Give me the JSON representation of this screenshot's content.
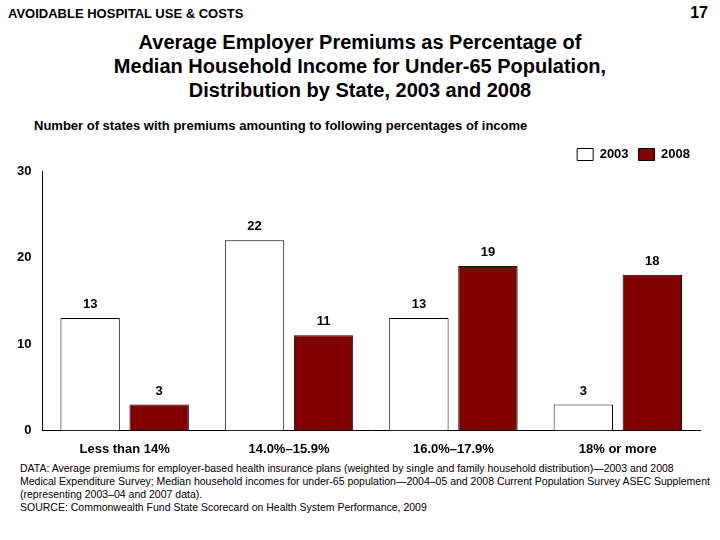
{
  "header": "AVOIDABLE HOSPITAL USE & COSTS",
  "page_number": "17",
  "notes": [
    "DATA: Average premiums for employer-based health insurance plans (weighted by single and family household distribution)—2003 and 2008 Medical Expenditure Survey; Median household incomes for under-65 population—2004–05 and 2008 Current Population Survey ASEC Supplement (representing 2003–04 and 2007 data).",
    "SOURCE: Commonwealth Fund State Scorecard on Health System Performance, 2009"
  ],
  "chart_data": {
    "type": "bar",
    "title": "Average Employer Premiums as Percentage of\nMedian Household Income for Under-65 Population,\nDistribution by State, 2003 and 2008",
    "subtitle": "Number of states with premiums amounting to following percentages of income",
    "categories": [
      "Less than 14%",
      "14.0%–15.9%",
      "16.0%–17.9%",
      "18% or more"
    ],
    "series": [
      {
        "name": "2003",
        "color": "#ffffff",
        "values": [
          13,
          22,
          13,
          3
        ]
      },
      {
        "name": "2008",
        "color": "#800000",
        "values": [
          3,
          11,
          19,
          18
        ]
      }
    ],
    "ylim": [
      0,
      30
    ],
    "yticks": [
      0,
      10,
      20,
      30
    ],
    "grid": false,
    "legend": "top right",
    "data_labels": true
  }
}
